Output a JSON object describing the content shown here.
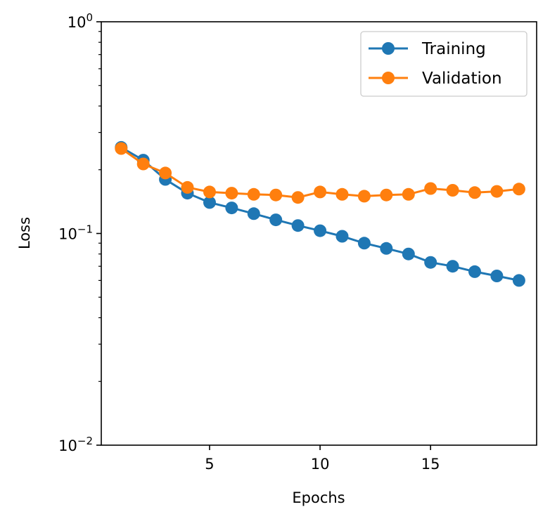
{
  "chart_data": {
    "type": "line",
    "title": "",
    "xlabel": "Epochs",
    "ylabel": "Loss",
    "yscale": "log",
    "ylim": [
      0.01,
      1
    ],
    "xlim": [
      0.1,
      19.8
    ],
    "x": [
      1,
      2,
      3,
      4,
      5,
      6,
      7,
      8,
      9,
      10,
      11,
      12,
      13,
      14,
      15,
      16,
      17,
      18,
      19
    ],
    "x_ticks": [
      5,
      10,
      15
    ],
    "y_ticks": [
      {
        "value": 0.01,
        "base": "10",
        "exp": "−2"
      },
      {
        "value": 0.1,
        "base": "10",
        "exp": "−1"
      },
      {
        "value": 1,
        "base": "10",
        "exp": "0"
      }
    ],
    "y_minor_ticks": [
      0.02,
      0.03,
      0.04,
      0.05,
      0.06,
      0.07,
      0.08,
      0.09,
      0.2,
      0.3,
      0.4,
      0.5,
      0.6,
      0.7,
      0.8,
      0.9
    ],
    "grid": false,
    "legend_position": "top-right",
    "series": [
      {
        "name": "Training",
        "color": "#1f77b4",
        "values": [
          0.255,
          0.222,
          0.18,
          0.155,
          0.14,
          0.132,
          0.124,
          0.116,
          0.109,
          0.103,
          0.097,
          0.09,
          0.085,
          0.08,
          0.073,
          0.07,
          0.066,
          0.063,
          0.06
        ]
      },
      {
        "name": "Validation",
        "color": "#ff7f0e",
        "values": [
          0.252,
          0.213,
          0.193,
          0.165,
          0.157,
          0.155,
          0.153,
          0.152,
          0.148,
          0.157,
          0.153,
          0.15,
          0.152,
          0.153,
          0.163,
          0.16,
          0.156,
          0.158,
          0.162
        ]
      }
    ]
  }
}
